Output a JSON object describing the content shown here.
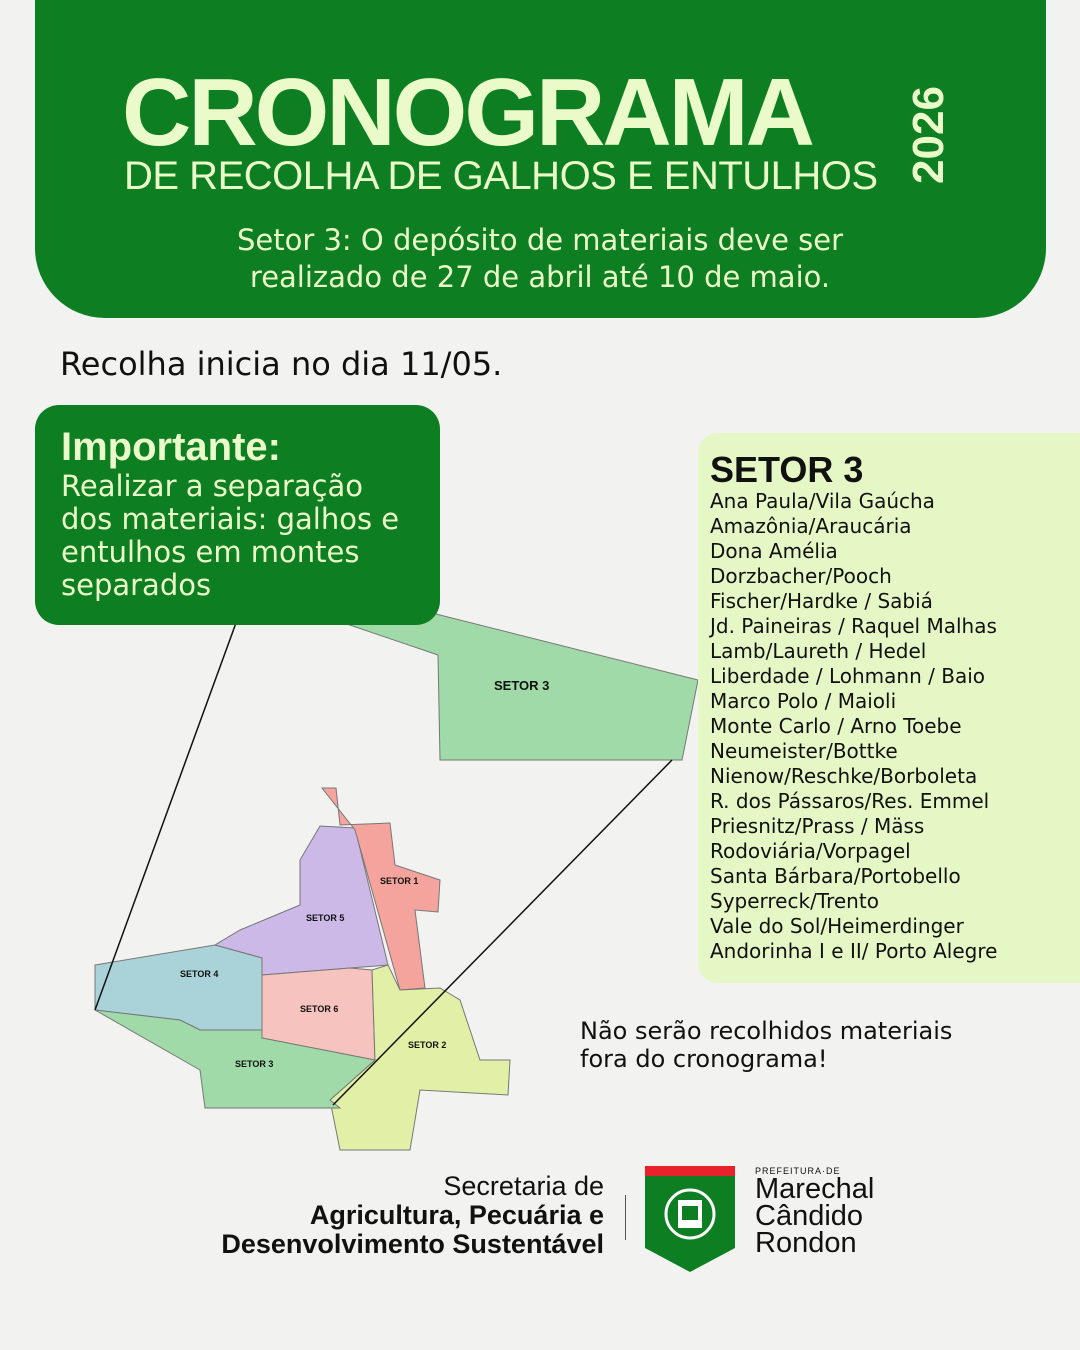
{
  "header": {
    "title": "CRONOGRAMA",
    "subtitle": "DE RECOLHA DE GALHOS E ENTULHOS",
    "year": "2026",
    "period_line1": "Setor 3: O depósito de materiais deve ser",
    "period_line2": "realizado de 27 de abril até 10 de maio."
  },
  "start_note": "Recolha inicia no dia 11/05.",
  "important": {
    "title": "Importante:",
    "text": "Realizar a separação dos materiais: galhos e entulhos em montes separados"
  },
  "sector_panel": {
    "title": "SETOR 3",
    "items": [
      "Ana Paula/Vila Gaúcha",
      "Amazônia/Araucária",
      "Dona Amélia",
      "Dorzbacher/Pooch",
      "Fischer/Hardke / Sabiá",
      "Jd. Paineiras / Raquel Malhas",
      "Lamb/Laureth / Hedel",
      "Liberdade / Lohmann / Baio",
      "Marco Polo / Maioli",
      "Monte Carlo / Arno Toebe",
      "Neumeister/Bottke",
      "Nienow/Reschke/Borboleta",
      "R. dos Pássaros/Res. Emmel",
      "Priesnitz/Prass / Mäss",
      "Rodoviária/Vorpagel",
      "Santa Bárbara/Portobello",
      "Syperreck/Trento",
      "Vale do Sol/Heimerdinger",
      "Andorinha I e II/ Porto Alegre"
    ]
  },
  "map": {
    "inset_label": "SETOR 3",
    "labels": {
      "s1": "SETOR 1",
      "s2": "SETOR 2",
      "s3": "SETOR 3",
      "s4": "SETOR 4",
      "s5": "SETOR 5",
      "s6": "SETOR 6"
    },
    "colors": {
      "s1": "#f4a49c",
      "s2": "#e2efa6",
      "s3": "#9fdaa8",
      "s4": "#a9d3d8",
      "s5": "#ccb9e8",
      "s6": "#f7c3bf"
    }
  },
  "warning": {
    "line1": "Não serão recolhidos materiais",
    "line2": "fora do cronograma!"
  },
  "footer": {
    "sec_line1": "Secretaria de",
    "sec_line2": "Agricultura, Pecuária e",
    "sec_line3": "Desenvolvimento Sustentável",
    "pref_small": "PREFEITURA·DE",
    "pref_line1": "Marechal",
    "pref_line2": "Cândido",
    "pref_line3": "Rondon"
  },
  "colors": {
    "brand_green": "#0d7f22",
    "title_text": "#eafbc9",
    "panel_bg": "#e6f7c6",
    "shield_red": "#e8222b"
  }
}
